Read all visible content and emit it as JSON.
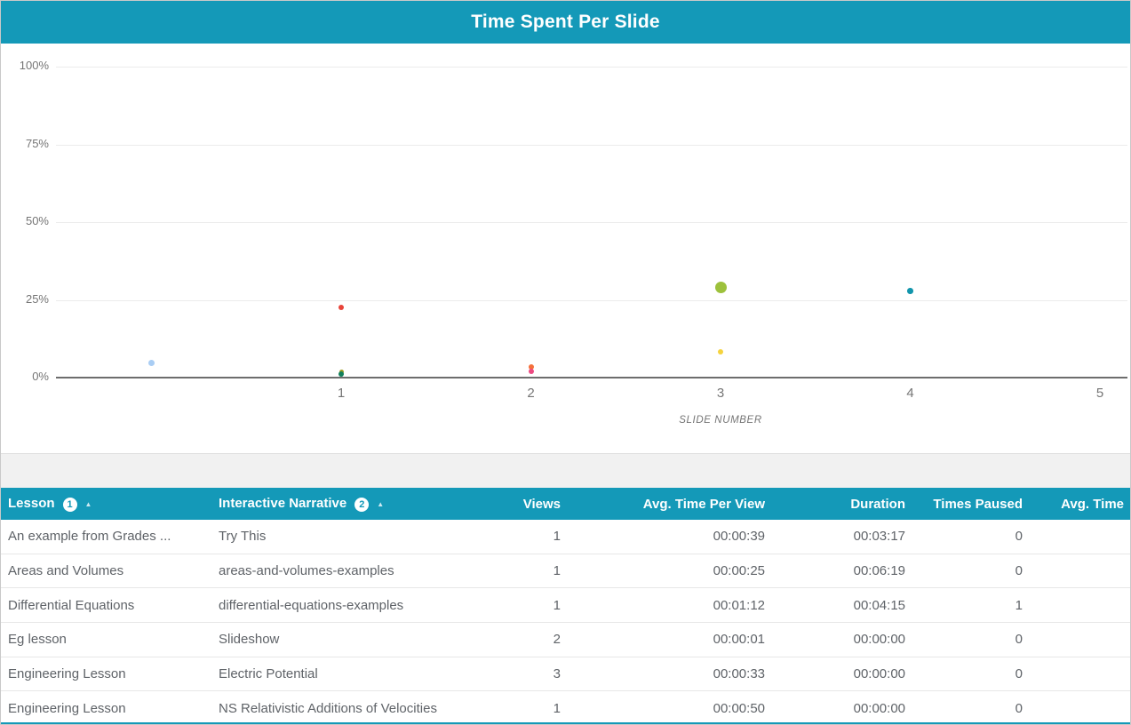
{
  "title_bar": {
    "title": "Time Spent Per Slide"
  },
  "chart_data": {
    "type": "scatter",
    "title": "Time Spent Per Slide",
    "xlabel": "SLIDE NUMBER",
    "ylabel": "",
    "xlim": [
      -0.5,
      5.15
    ],
    "ylim": [
      0,
      100
    ],
    "x_ticks": [
      1,
      2,
      3,
      4,
      5
    ],
    "y_ticks": [
      0,
      25,
      50,
      75,
      100
    ],
    "y_tick_suffix": "%",
    "grid": true,
    "legend": "none",
    "points": [
      {
        "slide": 0,
        "percent": 4.6,
        "color": "#a9cdf4",
        "radius": 3.5
      },
      {
        "slide": 1,
        "percent": 22.5,
        "color": "#e8443a",
        "radius": 3
      },
      {
        "slide": 1,
        "percent": 1.9,
        "color": "#9e9d24",
        "radius": 2.5
      },
      {
        "slide": 1,
        "percent": 1.1,
        "color": "#12805c",
        "radius": 3
      },
      {
        "slide": 2,
        "percent": 3.4,
        "color": "#f4703a",
        "radius": 3
      },
      {
        "slide": 2,
        "percent": 2.0,
        "color": "#ed4a82",
        "radius": 3
      },
      {
        "slide": 3,
        "percent": 29.0,
        "color": "#9dc13c",
        "radius": 6.5
      },
      {
        "slide": 3,
        "percent": 8.3,
        "color": "#f5d33e",
        "radius": 3
      },
      {
        "slide": 4,
        "percent": 27.9,
        "color": "#1295ac",
        "radius": 3.25
      }
    ]
  },
  "table": {
    "columns": [
      {
        "label": "Lesson",
        "badge": "1",
        "sort": "asc",
        "align": "left"
      },
      {
        "label": "Interactive Narrative",
        "badge": "2",
        "sort": "asc",
        "align": "left"
      },
      {
        "label": "Views",
        "align": "right"
      },
      {
        "label": "Avg. Time Per View",
        "align": "right"
      },
      {
        "label": "Duration",
        "align": "right"
      },
      {
        "label": "Times Paused",
        "align": "right"
      },
      {
        "label": "Avg. Time",
        "align": "right"
      }
    ],
    "rows": [
      [
        "An example from Grades ...",
        "Try This",
        "1",
        "00:00:39",
        "00:03:17",
        "0",
        ""
      ],
      [
        "Areas and Volumes",
        "areas-and-volumes-examples",
        "1",
        "00:00:25",
        "00:06:19",
        "0",
        ""
      ],
      [
        "Differential Equations",
        "differential-equations-examples",
        "1",
        "00:01:12",
        "00:04:15",
        "1",
        ""
      ],
      [
        "Eg lesson",
        "Slideshow",
        "2",
        "00:00:01",
        "00:00:00",
        "0",
        ""
      ],
      [
        "Engineering Lesson",
        "Electric Potential",
        "3",
        "00:00:33",
        "00:00:00",
        "0",
        ""
      ],
      [
        "Engineering Lesson",
        "NS Relativistic Additions of Velocities",
        "1",
        "00:00:50",
        "00:00:00",
        "0",
        ""
      ]
    ]
  },
  "colors": {
    "accent_teal": "#1499b8",
    "header_text": "#ffffff",
    "axis_text": "#757575",
    "grid_line": "#ececec",
    "axis_line": "#6d6d6d",
    "row_text": "#5f6368",
    "row_border": "#e7e7e7",
    "gap_background": "#f1f1f1"
  }
}
